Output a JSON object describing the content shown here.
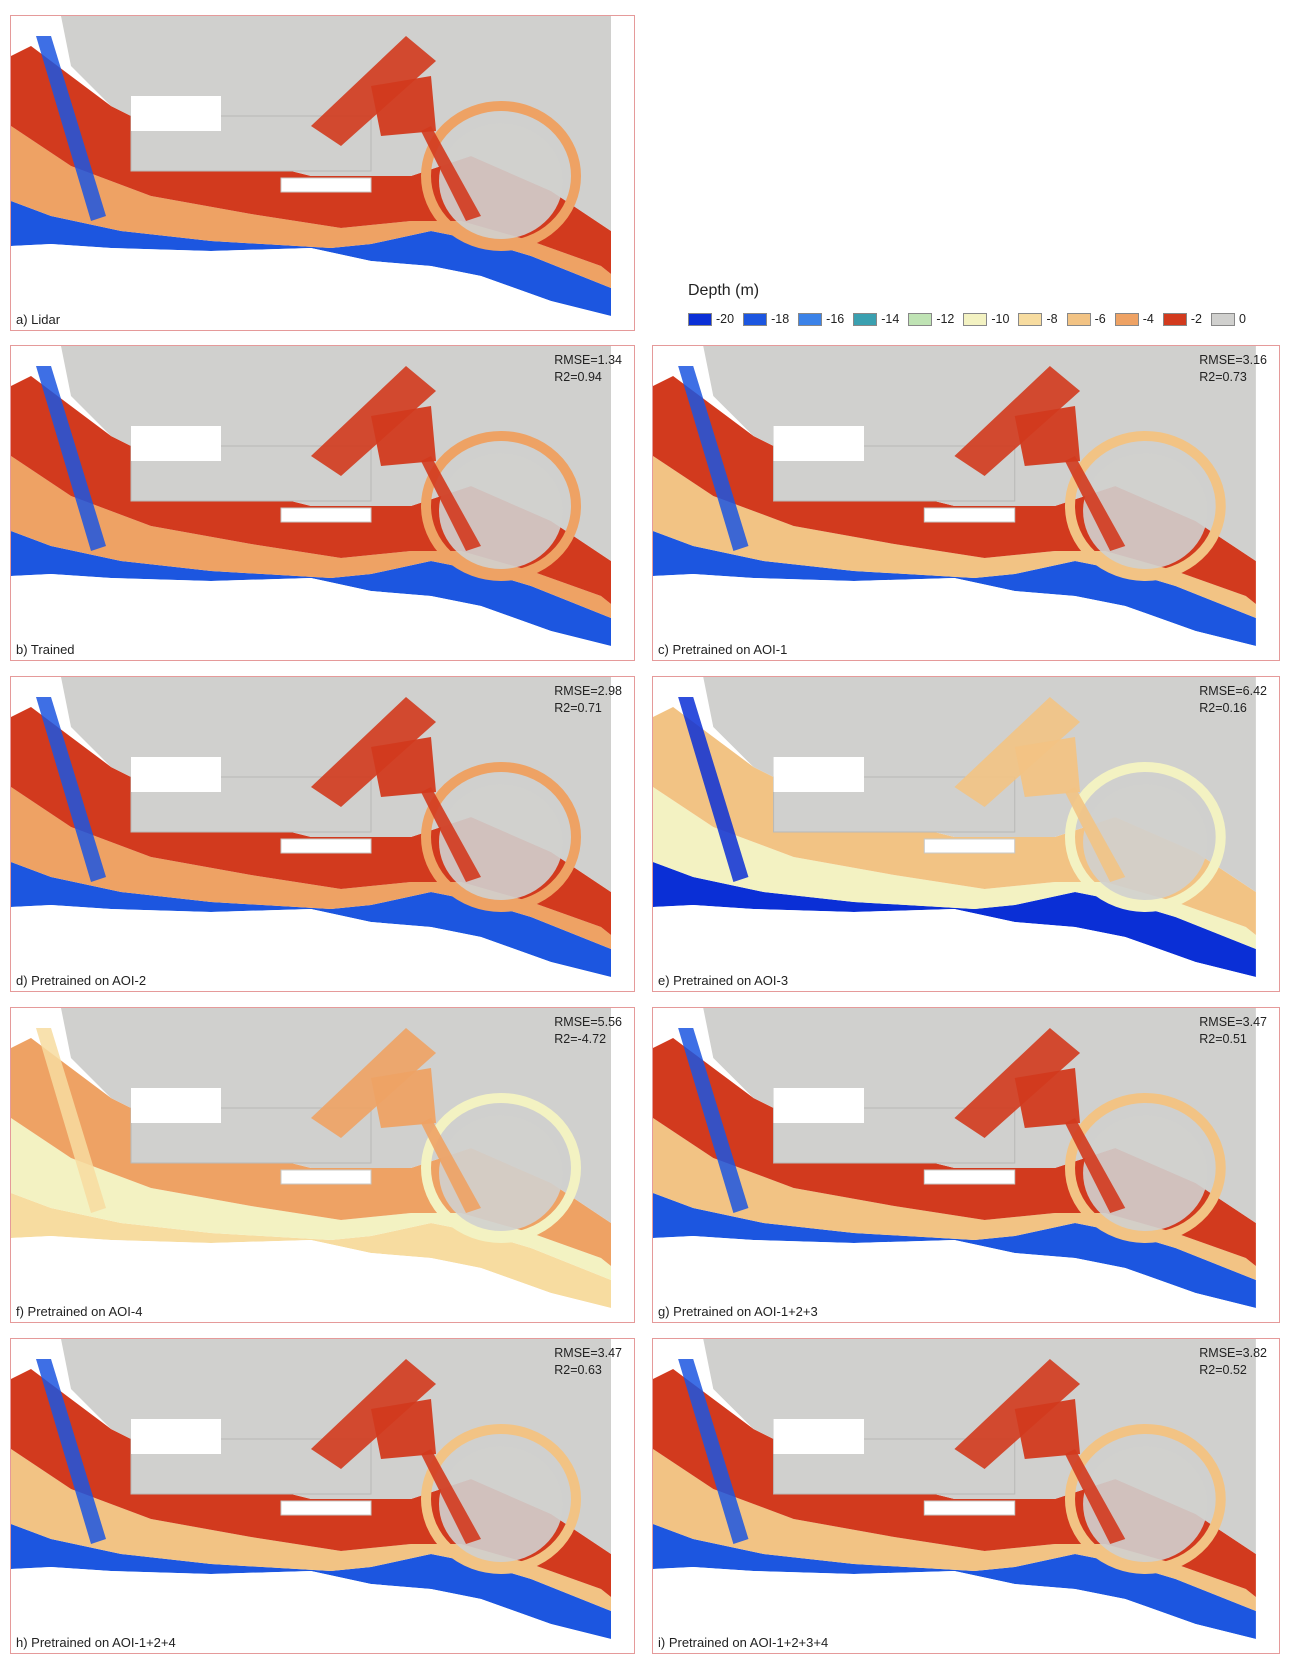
{
  "legend": {
    "title": "Depth (m)",
    "items": [
      {
        "label": "-20",
        "color": "#0a2fd6"
      },
      {
        "label": "-18",
        "color": "#1c56e0"
      },
      {
        "label": "-16",
        "color": "#3b82e8"
      },
      {
        "label": "-14",
        "color": "#3aa0b0"
      },
      {
        "label": "-12",
        "color": "#bfe3b4"
      },
      {
        "label": "-10",
        "color": "#f3f2c2"
      },
      {
        "label": "-8",
        "color": "#f7dca0"
      },
      {
        "label": "-6",
        "color": "#f2c384"
      },
      {
        "label": "-4",
        "color": "#eea264"
      },
      {
        "label": "-2",
        "color": "#d23a1e"
      },
      {
        "label": "0",
        "color": "#d0d0ce"
      }
    ]
  },
  "panels": [
    {
      "id": "a",
      "caption": "a) Lidar",
      "rmse": "",
      "r2": "",
      "deep": "#1c56e0",
      "mid": "#eea264",
      "shallow": "#d23a1e"
    },
    {
      "id": "b",
      "caption": "b) Trained",
      "rmse": "RMSE=1.34",
      "r2": "R2=0.94",
      "deep": "#1c56e0",
      "mid": "#eea264",
      "shallow": "#d23a1e"
    },
    {
      "id": "c",
      "caption": "c) Pretrained on AOI-1",
      "rmse": "RMSE=3.16",
      "r2": "R2=0.73",
      "deep": "#1c56e0",
      "mid": "#f2c384",
      "shallow": "#d23a1e"
    },
    {
      "id": "d",
      "caption": "d) Pretrained on AOI-2",
      "rmse": "RMSE=2.98",
      "r2": "R2=0.71",
      "deep": "#1c56e0",
      "mid": "#eea264",
      "shallow": "#d23a1e"
    },
    {
      "id": "e",
      "caption": "e) Pretrained on AOI-3",
      "rmse": "RMSE=6.42",
      "r2": "R2=0.16",
      "deep": "#0a2fd6",
      "mid": "#f3f2c2",
      "shallow": "#f2c384"
    },
    {
      "id": "f",
      "caption": "f) Pretrained on AOI-4",
      "rmse": "RMSE=5.56",
      "r2": "R2=-4.72",
      "deep": "#f7dca0",
      "mid": "#f3f2c2",
      "shallow": "#eea264"
    },
    {
      "id": "g",
      "caption": "g) Pretrained on AOI-1+2+3",
      "rmse": "RMSE=3.47",
      "r2": "R2=0.51",
      "deep": "#1c56e0",
      "mid": "#f2c384",
      "shallow": "#d23a1e"
    },
    {
      "id": "h",
      "caption": "h) Pretrained on AOI-1+2+4",
      "rmse": "RMSE=3.47",
      "r2": "R2=0.63",
      "deep": "#1c56e0",
      "mid": "#f2c384",
      "shallow": "#d23a1e"
    },
    {
      "id": "i",
      "caption": "i) Pretrained on AOI-1+2+3+4",
      "rmse": "RMSE=3.82",
      "r2": "R2=0.52",
      "deep": "#1c56e0",
      "mid": "#f2c384",
      "shallow": "#d23a1e"
    }
  ]
}
